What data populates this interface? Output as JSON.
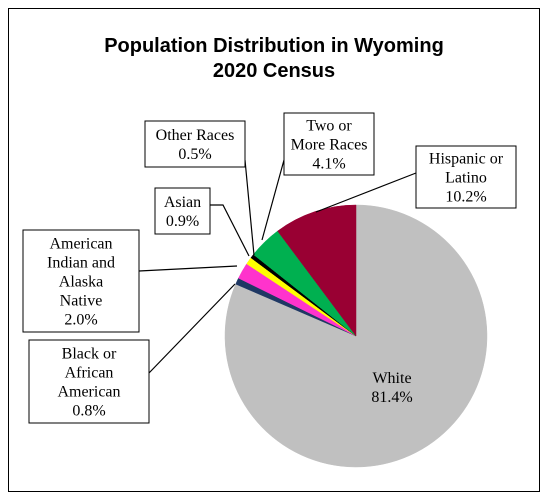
{
  "chart_data": {
    "type": "pie",
    "title": [
      "Population Distribution in Wyoming",
      "2020 Census"
    ],
    "slices": [
      {
        "label": [
          "White",
          "81.4%"
        ],
        "category": "White",
        "value": 81.4,
        "color": "#c0c0c0"
      },
      {
        "label": [
          "Black or",
          "African",
          "American",
          "0.8%"
        ],
        "category": "Black or African American",
        "value": 0.8,
        "color": "#1f3864"
      },
      {
        "label": [
          "American",
          "Indian and",
          "Alaska",
          "Native",
          "2.0%"
        ],
        "category": "American Indian and Alaska Native",
        "value": 2.0,
        "color": "#ff33cc"
      },
      {
        "label": [
          "Asian",
          "0.9%"
        ],
        "category": "Asian",
        "value": 0.9,
        "color": "#ffff00"
      },
      {
        "label": [
          "Other Races",
          "0.5%"
        ],
        "category": "Other Races",
        "value": 0.5,
        "color": "#000000"
      },
      {
        "label": [
          "Two or",
          "More Races",
          "4.1%"
        ],
        "category": "Two or More Races",
        "value": 4.1,
        "color": "#00b050"
      },
      {
        "label": [
          "Hispanic or",
          "Latino",
          "10.2%"
        ],
        "category": "Hispanic or Latino",
        "value": 10.2,
        "color": "#990033"
      }
    ]
  }
}
